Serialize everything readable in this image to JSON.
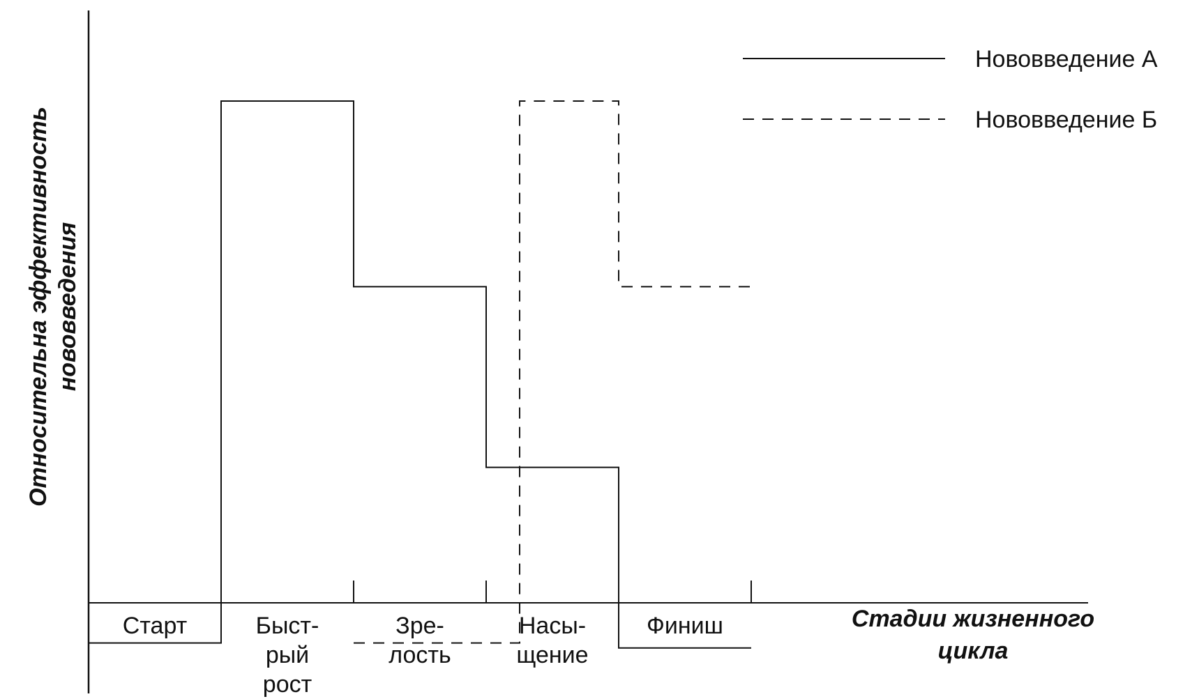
{
  "chart_data": {
    "type": "line",
    "x_axis": {
      "title_lines": [
        "Стадии жизненного",
        "цикла"
      ]
    },
    "y_axis": {
      "title_lines": [
        "Относительна эффективность",
        "нововведения"
      ]
    },
    "stages": [
      {
        "lines": [
          "Старт"
        ]
      },
      {
        "lines": [
          "Быст-",
          "рый",
          "рост"
        ]
      },
      {
        "lines": [
          "Зре-",
          "лость"
        ]
      },
      {
        "lines": [
          "Насы-",
          "щение"
        ]
      },
      {
        "lines": [
          "Финиш"
        ]
      }
    ],
    "series": [
      {
        "name": "Нововведение А",
        "style": "solid",
        "color": "#111111",
        "values": [
          -0.08,
          1.0,
          0.63,
          0.27,
          -0.09
        ]
      },
      {
        "name": "Нововведение Б",
        "style": "dashed",
        "color": "#111111",
        "values": [
          null,
          null,
          -0.08,
          1.0,
          0.63
        ]
      }
    ],
    "legend_position": "top-right",
    "grid": false
  }
}
